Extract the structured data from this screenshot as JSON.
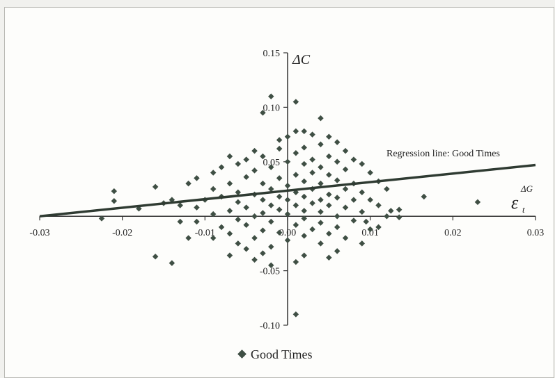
{
  "chart_data": {
    "type": "scatter",
    "xlim": [
      -0.03,
      0.03
    ],
    "ylim": [
      -0.1,
      0.15
    ],
    "x_ticks": [
      -0.03,
      -0.02,
      -0.01,
      0.0,
      0.01,
      0.02,
      0.03
    ],
    "x_tick_labels": [
      "-0.03",
      "-0.02",
      "-0.01",
      "0.00",
      "0.01",
      "0.02",
      "0.03"
    ],
    "y_ticks": [
      -0.1,
      -0.05,
      0.05,
      0.1,
      0.15
    ],
    "y_tick_labels": [
      "-0.10",
      "-0.05",
      "0.05",
      "0.10",
      "0.15"
    ],
    "ylabel": "ΔC",
    "xlabel": "ε",
    "xlabel_sub": "t",
    "xlabel_sup": "ΔG",
    "grid": false,
    "annotation": "Regression line:  Good Times",
    "regression_line": {
      "x": [
        -0.03,
        0.03
      ],
      "y": [
        0.0,
        0.047
      ]
    },
    "legend": {
      "position": "bottom-center",
      "entries": [
        "Good Times"
      ]
    },
    "marker_color": "#3f4f44",
    "line_color": "#2f3b32",
    "series": [
      {
        "name": "Good Times",
        "points": [
          [
            0.001,
            0.105
          ],
          [
            -0.002,
            0.11
          ],
          [
            -0.003,
            0.095
          ],
          [
            0.004,
            0.09
          ],
          [
            0.001,
            0.078
          ],
          [
            0.002,
            0.078
          ],
          [
            0.003,
            0.075
          ],
          [
            0.005,
            0.073
          ],
          [
            -0.001,
            0.07
          ],
          [
            0.0,
            0.073
          ],
          [
            0.006,
            0.068
          ],
          [
            0.004,
            0.066
          ],
          [
            -0.004,
            0.06
          ],
          [
            0.002,
            0.063
          ],
          [
            0.007,
            0.06
          ],
          [
            -0.001,
            0.062
          ],
          [
            0.005,
            0.055
          ],
          [
            0.003,
            0.052
          ],
          [
            -0.003,
            0.055
          ],
          [
            0.001,
            0.058
          ],
          [
            -0.005,
            0.052
          ],
          [
            0.006,
            0.05
          ],
          [
            0.008,
            0.052
          ],
          [
            0.002,
            0.048
          ],
          [
            -0.007,
            0.055
          ],
          [
            -0.006,
            0.048
          ],
          [
            0.004,
            0.045
          ],
          [
            0.009,
            0.048
          ],
          [
            -0.002,
            0.045
          ],
          [
            0.0,
            0.05
          ],
          [
            -0.004,
            0.042
          ],
          [
            0.007,
            0.043
          ],
          [
            0.003,
            0.04
          ],
          [
            0.001,
            0.038
          ],
          [
            -0.008,
            0.045
          ],
          [
            -0.009,
            0.04
          ],
          [
            0.005,
            0.038
          ],
          [
            0.01,
            0.04
          ],
          [
            -0.001,
            0.035
          ],
          [
            0.002,
            0.032
          ],
          [
            -0.005,
            0.036
          ],
          [
            0.006,
            0.033
          ],
          [
            -0.011,
            0.035
          ],
          [
            -0.003,
            0.03
          ],
          [
            0.004,
            0.03
          ],
          [
            0.008,
            0.03
          ],
          [
            0.0,
            0.028
          ],
          [
            -0.007,
            0.03
          ],
          [
            0.011,
            0.032
          ],
          [
            -0.012,
            0.03
          ],
          [
            0.003,
            0.025
          ],
          [
            -0.002,
            0.025
          ],
          [
            0.007,
            0.025
          ],
          [
            -0.006,
            0.022
          ],
          [
            0.001,
            0.022
          ],
          [
            0.005,
            0.02
          ],
          [
            -0.009,
            0.025
          ],
          [
            0.009,
            0.022
          ],
          [
            -0.004,
            0.02
          ],
          [
            0.002,
            0.018
          ],
          [
            -0.001,
            0.018
          ],
          [
            0.006,
            0.017
          ],
          [
            -0.008,
            0.018
          ],
          [
            0.004,
            0.015
          ],
          [
            -0.003,
            0.015
          ],
          [
            0.0,
            0.015
          ],
          [
            0.008,
            0.015
          ],
          [
            -0.006,
            0.013
          ],
          [
            0.01,
            0.015
          ],
          [
            0.003,
            0.012
          ],
          [
            -0.002,
            0.01
          ],
          [
            0.001,
            0.01
          ],
          [
            -0.01,
            0.015
          ],
          [
            0.005,
            0.01
          ],
          [
            -0.005,
            0.008
          ],
          [
            0.007,
            0.008
          ],
          [
            -0.001,
            0.006
          ],
          [
            0.002,
            0.005
          ],
          [
            -0.007,
            0.005
          ],
          [
            0.004,
            0.004
          ],
          [
            -0.003,
            0.003
          ],
          [
            0.009,
            0.004
          ],
          [
            0.0,
            0.002
          ],
          [
            -0.009,
            0.002
          ],
          [
            0.006,
            0.0
          ],
          [
            -0.004,
            0.0
          ],
          [
            0.002,
            -0.002
          ],
          [
            -0.006,
            -0.003
          ],
          [
            0.008,
            -0.004
          ],
          [
            -0.002,
            -0.005
          ],
          [
            0.004,
            -0.006
          ],
          [
            -0.011,
            -0.005
          ],
          [
            0.001,
            -0.008
          ],
          [
            -0.005,
            -0.008
          ],
          [
            0.006,
            -0.01
          ],
          [
            -0.008,
            -0.01
          ],
          [
            0.003,
            -0.012
          ],
          [
            -0.003,
            -0.013
          ],
          [
            0.01,
            -0.012
          ],
          [
            -0.001,
            -0.015
          ],
          [
            0.005,
            -0.016
          ],
          [
            -0.007,
            -0.016
          ],
          [
            0.002,
            -0.018
          ],
          [
            -0.004,
            -0.02
          ],
          [
            0.007,
            -0.02
          ],
          [
            -0.009,
            -0.02
          ],
          [
            0.0,
            -0.022
          ],
          [
            -0.006,
            -0.025
          ],
          [
            0.004,
            -0.025
          ],
          [
            -0.002,
            -0.028
          ],
          [
            0.009,
            -0.025
          ],
          [
            -0.005,
            -0.03
          ],
          [
            0.006,
            -0.032
          ],
          [
            -0.003,
            -0.034
          ],
          [
            -0.007,
            -0.036
          ],
          [
            0.002,
            -0.036
          ],
          [
            -0.004,
            -0.04
          ],
          [
            0.001,
            -0.042
          ],
          [
            -0.002,
            -0.045
          ],
          [
            0.005,
            -0.038
          ],
          [
            0.001,
            -0.09
          ],
          [
            -0.016,
            -0.037
          ],
          [
            -0.014,
            -0.043
          ],
          [
            -0.012,
            -0.02
          ],
          [
            -0.013,
            -0.005
          ],
          [
            -0.011,
            0.008
          ],
          [
            -0.015,
            0.012
          ],
          [
            -0.016,
            0.027
          ],
          [
            -0.018,
            0.007
          ],
          [
            -0.021,
            0.014
          ],
          [
            -0.0225,
            -0.002
          ],
          [
            -0.021,
            0.023
          ],
          [
            -0.014,
            0.015
          ],
          [
            -0.013,
            0.01
          ],
          [
            0.012,
            0.025
          ],
          [
            0.0135,
            0.006
          ],
          [
            0.0135,
            -0.001
          ],
          [
            0.0125,
            0.005
          ],
          [
            0.0165,
            0.018
          ],
          [
            0.023,
            0.013
          ],
          [
            0.011,
            0.01
          ],
          [
            0.012,
            0.0
          ],
          [
            0.0095,
            -0.005
          ],
          [
            0.011,
            -0.01
          ]
        ]
      }
    ]
  }
}
